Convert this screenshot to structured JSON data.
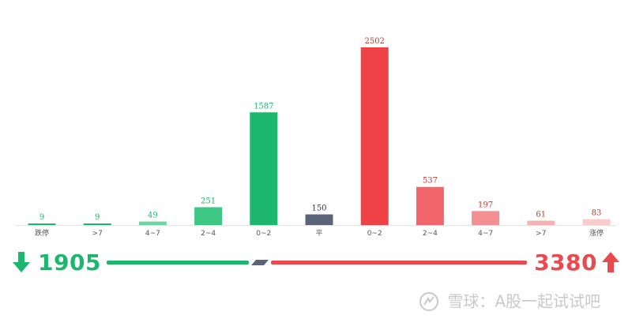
{
  "chart_data": {
    "type": "bar",
    "categories": [
      "跌停",
      ">7",
      "4~7",
      "2~4",
      "0~2",
      "平",
      "0~2",
      "2~4",
      "4~7",
      ">7",
      "涨停"
    ],
    "values": [
      9,
      9,
      49,
      251,
      1587,
      150,
      2502,
      537,
      197,
      61,
      83
    ],
    "bar_colors": [
      "#1db66d",
      "#1db66d",
      "#6fd3a4",
      "#3ec784",
      "#1db66d",
      "#5b6478",
      "#ef4247",
      "#f2666b",
      "#f48f92",
      "#f6b2b3",
      "#f8cccc"
    ],
    "label_colors": [
      "#1db66d",
      "#1db66d",
      "#1db66d",
      "#1db66d",
      "#1db66d",
      "#333333",
      "#c0392b",
      "#c0392b",
      "#c0392b",
      "#c0392b",
      "#c0392b"
    ],
    "title": "",
    "xlabel": "",
    "ylabel": "",
    "ylim": [
      0,
      2502
    ],
    "grid": false,
    "legend": "none"
  },
  "summary": {
    "down_count": "1905",
    "up_count": "3380",
    "down_color": "#1db66d",
    "up_color": "#e84a4f"
  },
  "watermark": {
    "text": "雪球：A股一起试试吧"
  }
}
